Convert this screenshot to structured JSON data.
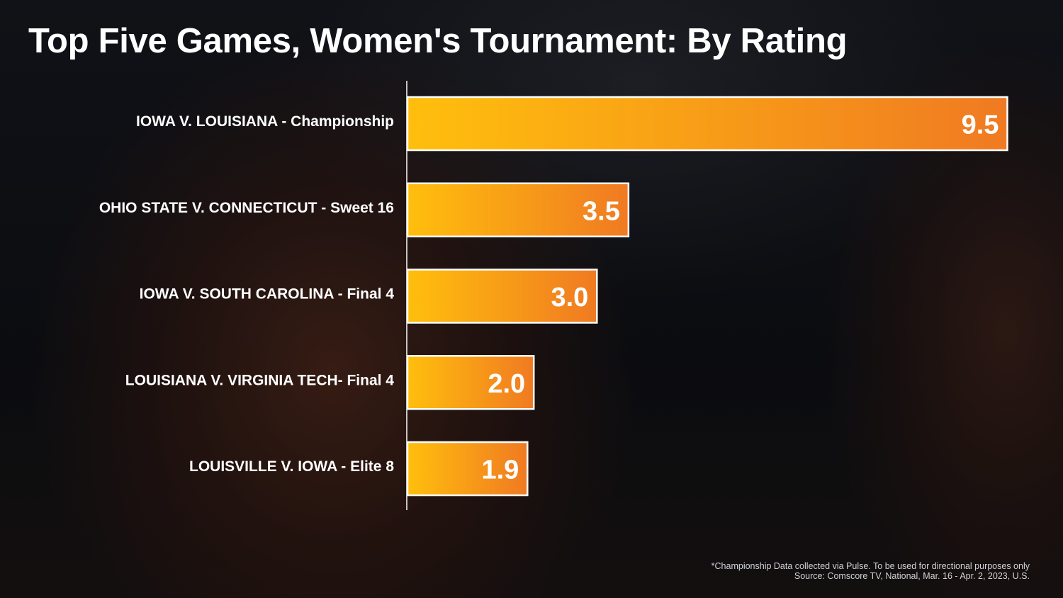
{
  "chart_data": {
    "type": "bar",
    "orientation": "horizontal",
    "title": "Top Five Games, Women's Tournament: By Rating",
    "categories": [
      "IOWA V. LOUISIANA - Championship",
      "OHIO STATE V. CONNECTICUT - Sweet 16",
      "IOWA V. SOUTH CAROLINA - Final 4",
      "LOUISIANA V. VIRGINIA TECH- Final 4",
      "LOUISVILLE V. IOWA - Elite 8"
    ],
    "values": [
      9.5,
      3.5,
      3.0,
      2.0,
      1.9
    ],
    "value_labels": [
      "9.5",
      "3.5",
      "3.0",
      "2.0",
      "1.9"
    ],
    "xlim": [
      0,
      10
    ],
    "grid": false,
    "legend": "none",
    "colors": {
      "bar_start": "#ffbf0d",
      "bar_end": "#f07a22",
      "bar_border": "#ffffff",
      "text": "#ffffff",
      "axis": "#ffffff"
    }
  },
  "footnote": {
    "line1": "*Championship Data collected via Pulse. To be used for directional purposes only",
    "line2": "Source: Comscore TV, National, Mar. 16 - Apr. 2, 2023, U.S."
  }
}
